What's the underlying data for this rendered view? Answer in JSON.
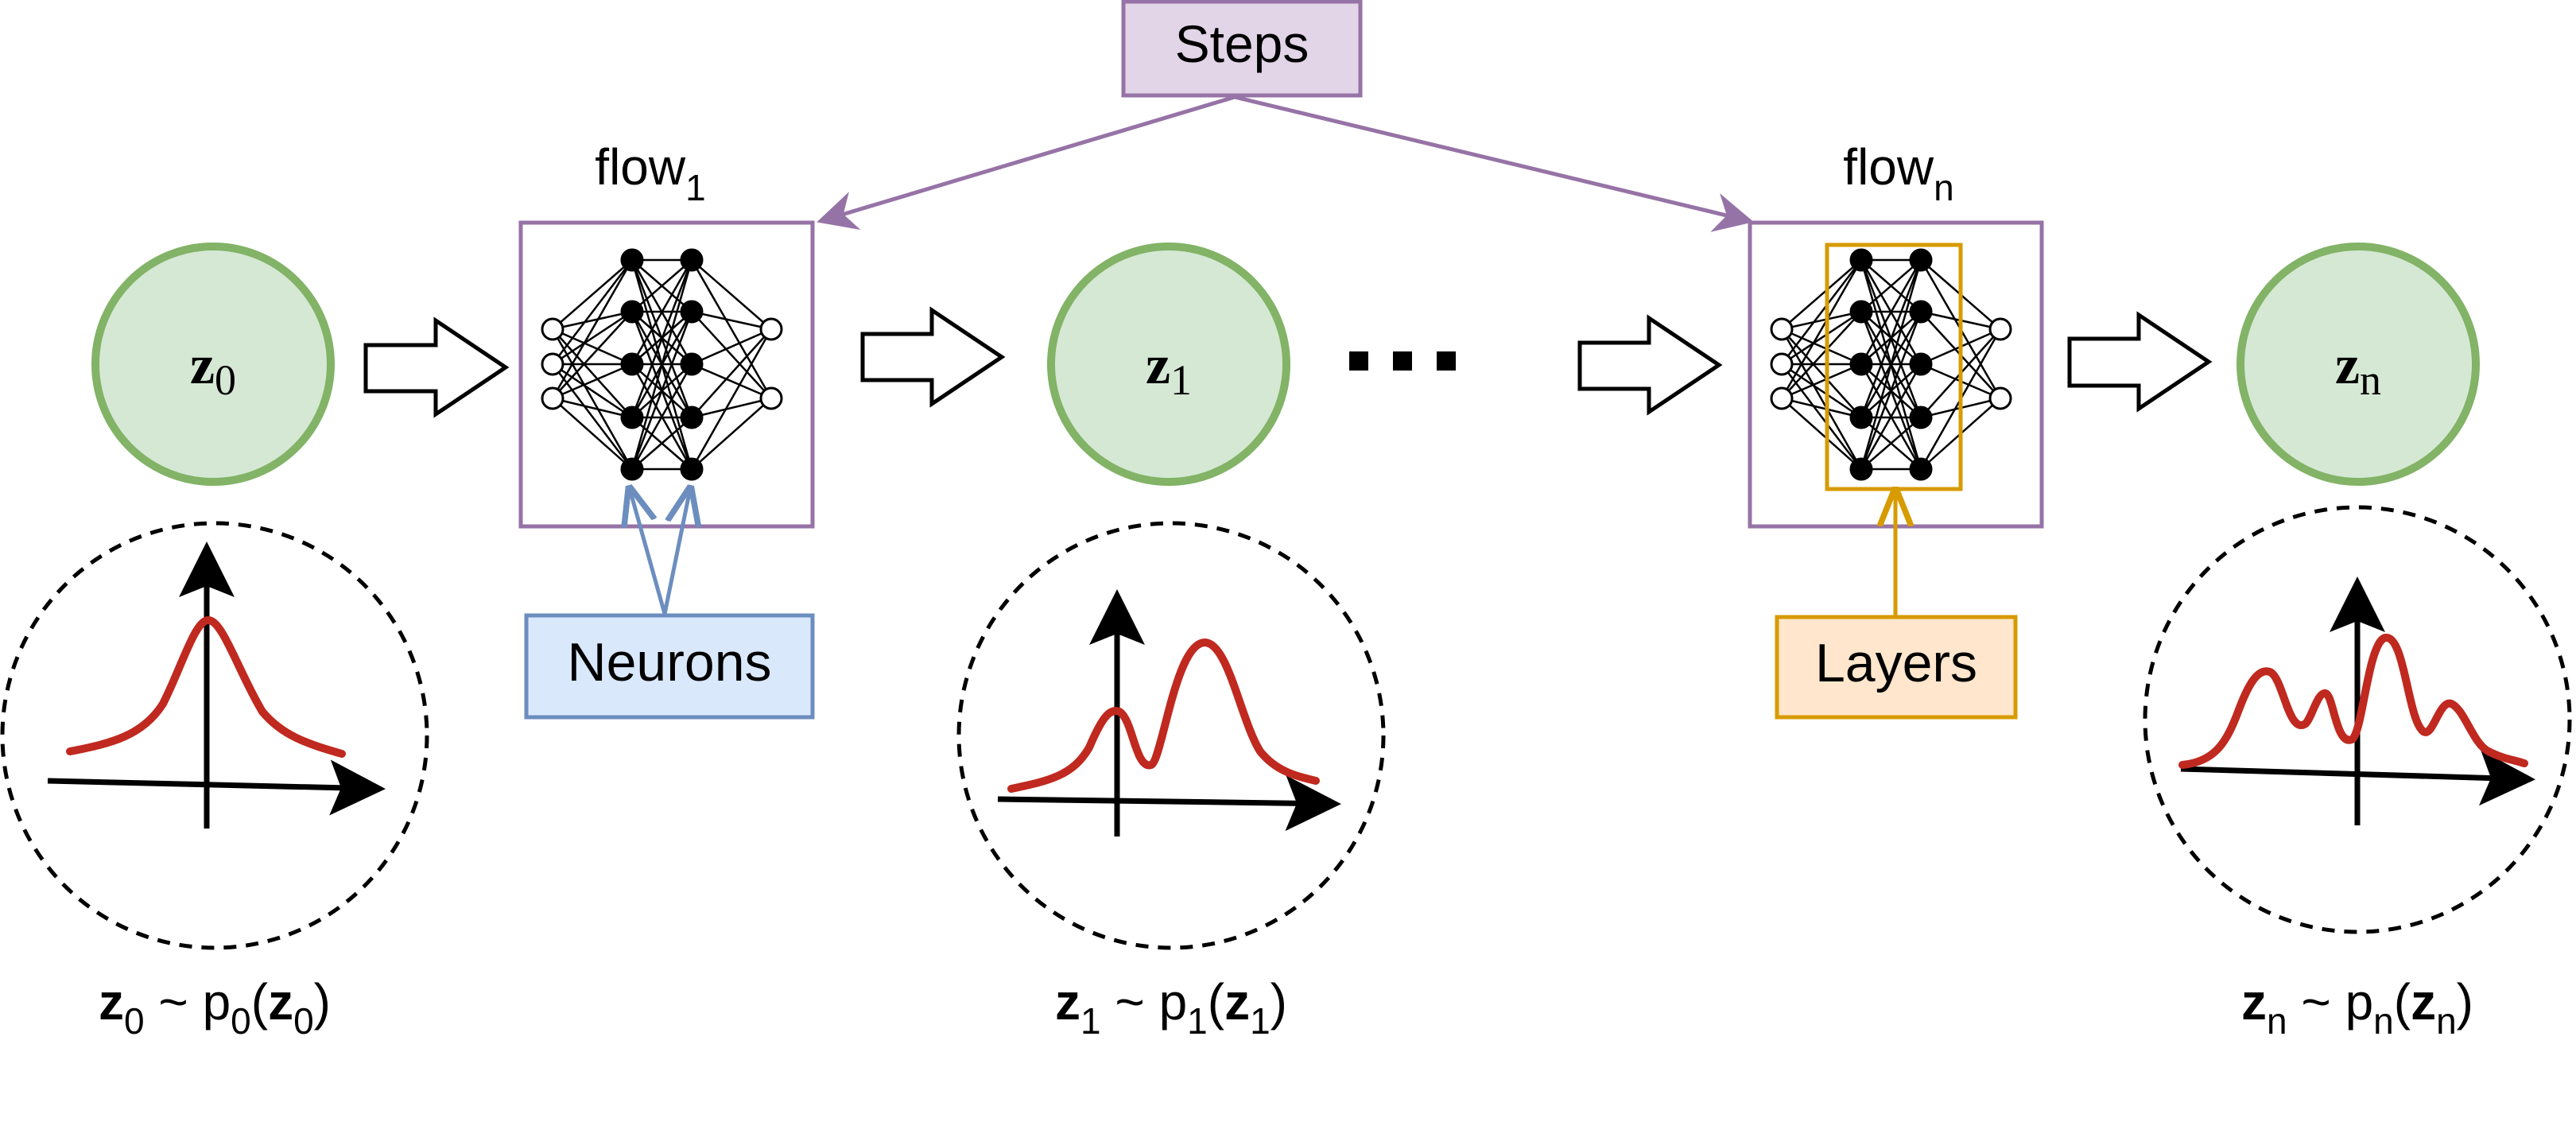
{
  "labels": {
    "steps": "Steps",
    "flow_first": {
      "base": "flow",
      "sub": "1"
    },
    "flow_last": {
      "base": "flow",
      "sub": "n"
    },
    "neurons": "Neurons",
    "layers": "Layers",
    "ellipsis": "..."
  },
  "nodes": {
    "z0": {
      "base": "z",
      "sub": "0"
    },
    "z1": {
      "base": "z",
      "sub": "1"
    },
    "zn": {
      "base": "z",
      "sub": "n"
    }
  },
  "distributions": {
    "z0": {
      "var": "z",
      "sub": "0",
      "tilde": "~",
      "p": "p"
    },
    "z1": {
      "var": "z",
      "sub": "1",
      "tilde": "~",
      "p": "p"
    },
    "zn": {
      "var": "z",
      "sub": "n",
      "tilde": "~",
      "p": "p"
    }
  },
  "colors": {
    "node_fill": "#d5e8d4",
    "node_stroke": "#82b366",
    "flow_stroke": "#9673a6",
    "steps_fill": "#e1d5e7",
    "neurons_fill": "#dae8fc",
    "neurons_stroke": "#6c8ebf",
    "layers_fill": "#ffe6cc",
    "layers_stroke": "#d79b00",
    "curve": "#c0291f"
  }
}
